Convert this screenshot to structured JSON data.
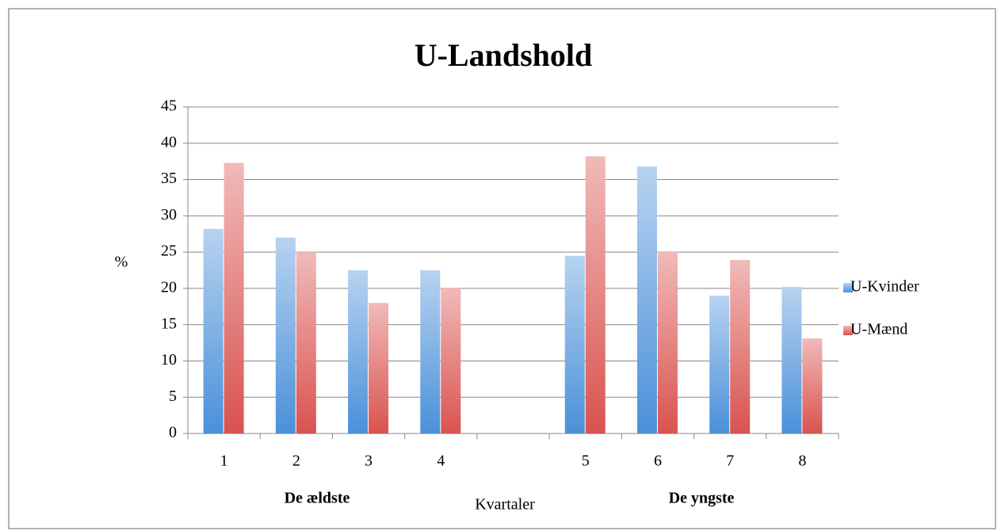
{
  "chart_data": {
    "type": "bar",
    "title": "U-Landshold",
    "x_label": "Kvartaler",
    "y_label": "%",
    "annotations": [
      "De ældste",
      "De yngste"
    ],
    "categories": [
      "1",
      "2",
      "3",
      "4",
      null,
      "5",
      "6",
      "7",
      "8"
    ],
    "series": [
      {
        "name": "U-Kvinder",
        "color": "#4a90d9",
        "values": [
          28.2,
          27,
          22.5,
          22.5,
          null,
          24.5,
          36.8,
          19,
          20.2
        ]
      },
      {
        "name": "U-Mænd",
        "color": "#d9534f",
        "values": [
          37.3,
          25,
          18,
          20.1,
          null,
          38.2,
          25.1,
          23.9,
          13.1
        ]
      }
    ],
    "ylim": [
      0,
      45
    ],
    "yticks": [
      0,
      5,
      10,
      15,
      20,
      25,
      30,
      35,
      40,
      45
    ],
    "grid": true,
    "legend": "right"
  }
}
